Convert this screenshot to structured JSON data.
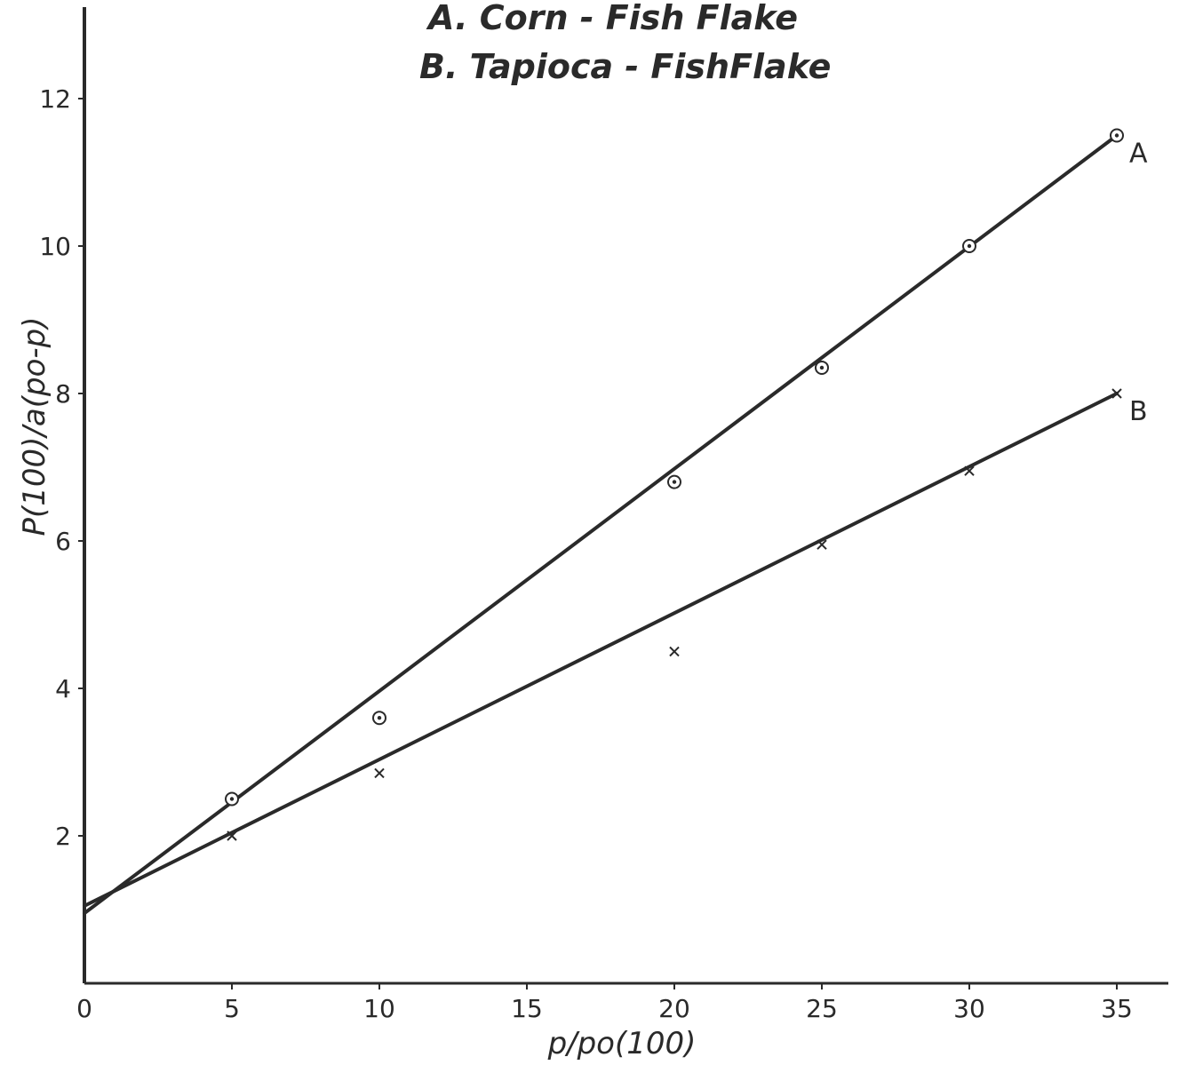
{
  "legend": {
    "line_a": "A. Corn - Fish Flake",
    "line_b": "B. Tapioca - FishFlake"
  },
  "chart_data": {
    "type": "line",
    "xlabel": "p/po(100)",
    "ylabel": "P(100)/a(po-p)",
    "xlim": [
      0,
      37
    ],
    "ylim": [
      0,
      13.5
    ],
    "xticks": [
      0,
      5,
      10,
      15,
      20,
      25,
      30,
      35
    ],
    "xtick_labels": [
      "0",
      "5",
      "10",
      "15",
      "20",
      "25",
      "30",
      "35"
    ],
    "yticks": [
      2,
      4,
      6,
      8,
      10,
      12
    ],
    "ytick_labels": [
      "2",
      "4",
      "6",
      "8",
      "10",
      "12"
    ],
    "grid": false,
    "series": [
      {
        "name": "A",
        "marker": "circled-dot",
        "color": "#2a2a2a",
        "x": [
          5,
          10,
          20,
          25,
          30,
          35
        ],
        "y": [
          2.5,
          3.6,
          6.8,
          8.35,
          10.0,
          11.5
        ],
        "fit_line": {
          "x": [
            0,
            35
          ],
          "y": [
            0.95,
            11.5
          ]
        }
      },
      {
        "name": "B",
        "marker": "x",
        "color": "#2a2a2a",
        "x": [
          5,
          10,
          20,
          25,
          30,
          35
        ],
        "y": [
          2.0,
          2.85,
          4.5,
          5.95,
          6.95,
          8.0
        ],
        "fit_line": {
          "x": [
            0,
            35
          ],
          "y": [
            1.05,
            8.0
          ]
        }
      }
    ]
  }
}
